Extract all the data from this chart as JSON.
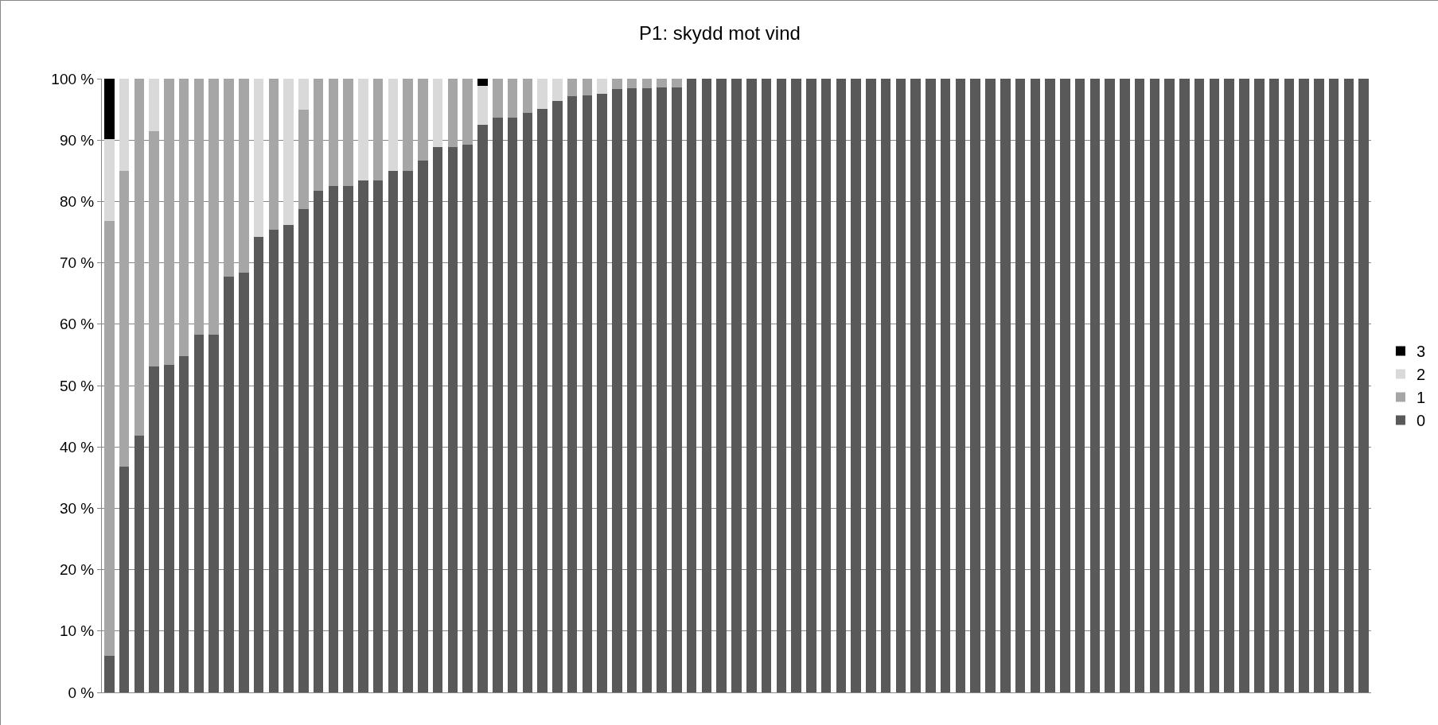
{
  "chart_data": {
    "type": "bar",
    "title": "P1: skydd mot vind",
    "stacked": true,
    "categories": [
      null,
      null,
      null,
      null,
      null,
      null,
      null,
      null,
      null,
      null,
      null,
      null,
      null,
      null,
      null,
      null,
      null,
      null,
      null,
      null,
      null,
      null,
      null,
      null,
      null,
      null,
      null,
      null,
      null,
      null,
      null,
      null,
      null,
      null,
      null,
      null,
      null,
      null,
      null,
      null,
      null,
      null,
      null,
      null,
      null,
      null,
      null,
      null,
      null,
      null,
      null,
      null,
      null,
      null,
      null,
      null,
      null,
      null,
      null,
      null,
      null,
      null,
      null,
      null,
      null,
      null,
      null,
      null,
      null,
      null,
      null,
      null,
      null,
      null,
      null,
      null,
      null,
      null,
      null,
      null,
      null,
      null,
      null,
      null,
      null
    ],
    "series": [
      {
        "name": "0",
        "color": "#595959",
        "values": [
          6,
          36.8,
          41.9,
          53.1,
          53.4,
          54.8,
          58.3,
          58.3,
          67.8,
          68.4,
          74.2,
          75.4,
          76.2,
          78.8,
          81.7,
          82.5,
          82.5,
          83.4,
          83.4,
          85.0,
          85.0,
          86.7,
          88.9,
          88.9,
          89.2,
          92.5,
          93.7,
          93.7,
          94.4,
          95.1,
          96.4,
          97.2,
          97.3,
          97.5,
          98.3,
          98.5,
          98.5,
          98.6,
          98.6,
          100,
          100,
          100,
          100,
          100,
          100,
          100,
          100,
          100,
          100,
          100,
          100,
          100,
          100,
          100,
          100,
          100,
          100,
          100,
          100,
          100,
          100,
          100,
          100,
          100,
          100,
          100,
          100,
          100,
          100,
          100,
          100,
          100,
          100,
          100,
          100,
          100,
          100,
          100,
          100,
          100,
          100,
          100,
          100,
          100,
          100
        ]
      },
      {
        "name": "1",
        "color": "#a6a6a6",
        "values": [
          70.8,
          48.2,
          58.1,
          38.4,
          46.6,
          45.2,
          41.7,
          41.7,
          32.2,
          31.6,
          0,
          24.6,
          0,
          16.2,
          18.3,
          17.5,
          17.5,
          0,
          16.6,
          0,
          15.0,
          13.3,
          0,
          11.1,
          10.8,
          0,
          6.3,
          6.3,
          5.6,
          0,
          0,
          2.8,
          2.7,
          0,
          1.7,
          1.5,
          1.5,
          1.4,
          1.4,
          0,
          0,
          0,
          0,
          0,
          0,
          0,
          0,
          0,
          0,
          0,
          0,
          0,
          0,
          0,
          0,
          0,
          0,
          0,
          0,
          0,
          0,
          0,
          0,
          0,
          0,
          0,
          0,
          0,
          0,
          0,
          0,
          0,
          0,
          0,
          0,
          0,
          0,
          0,
          0,
          0,
          0,
          0,
          0,
          0,
          0
        ]
      },
      {
        "name": "2",
        "color": "#d9d9d9",
        "values": [
          13.3,
          15.0,
          0,
          8.5,
          0,
          0,
          0,
          0,
          0,
          0,
          25.8,
          0,
          23.8,
          5.0,
          0,
          0,
          0,
          16.6,
          0,
          15.0,
          0,
          0,
          11.1,
          0,
          0,
          6.3,
          0,
          0,
          0,
          4.9,
          3.6,
          0,
          0,
          2.5,
          0,
          0,
          0,
          0,
          0,
          0,
          0,
          0,
          0,
          0,
          0,
          0,
          0,
          0,
          0,
          0,
          0,
          0,
          0,
          0,
          0,
          0,
          0,
          0,
          0,
          0,
          0,
          0,
          0,
          0,
          0,
          0,
          0,
          0,
          0,
          0,
          0,
          0,
          0,
          0,
          0,
          0,
          0,
          0,
          0,
          0,
          0,
          0,
          0,
          0,
          0
        ]
      },
      {
        "name": "3",
        "color": "#000000",
        "values": [
          9.9,
          0,
          0,
          0,
          0,
          0,
          0,
          0,
          0,
          0,
          0,
          0,
          0,
          0,
          0,
          0,
          0,
          0,
          0,
          0,
          0,
          0,
          0,
          0,
          0,
          1.2,
          0,
          0,
          0,
          0,
          0,
          0,
          0,
          0,
          0,
          0,
          0,
          0,
          0,
          0,
          0,
          0,
          0,
          0,
          0,
          0,
          0,
          0,
          0,
          0,
          0,
          0,
          0,
          0,
          0,
          0,
          0,
          0,
          0,
          0,
          0,
          0,
          0,
          0,
          0,
          0,
          0,
          0,
          0,
          0,
          0,
          0,
          0,
          0,
          0,
          0,
          0,
          0,
          0,
          0,
          0,
          0,
          0,
          0,
          0
        ]
      }
    ],
    "ylim": [
      0,
      100
    ],
    "yticks": [
      {
        "value": 0,
        "label": "0 %"
      },
      {
        "value": 10,
        "label": "10 %"
      },
      {
        "value": 20,
        "label": "20 %"
      },
      {
        "value": 30,
        "label": "30 %"
      },
      {
        "value": 40,
        "label": "40 %"
      },
      {
        "value": 50,
        "label": "50 %"
      },
      {
        "value": 60,
        "label": "60 %"
      },
      {
        "value": 70,
        "label": "70 %"
      },
      {
        "value": 80,
        "label": "80 %"
      },
      {
        "value": 90,
        "label": "90 %"
      },
      {
        "value": 100,
        "label": "100 %"
      }
    ],
    "grid": "y",
    "legend": "right",
    "tick_labels": "y"
  }
}
